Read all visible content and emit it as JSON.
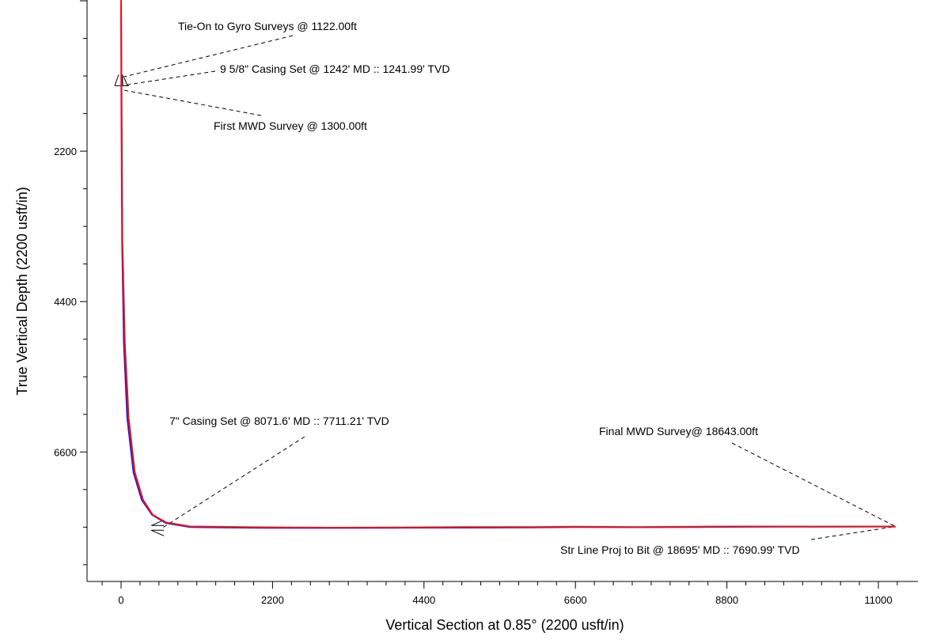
{
  "chart_data": {
    "type": "line",
    "xlabel": "Vertical Section at 0.85° (2200 usft/in)",
    "ylabel": "True Vertical Depth (2200 usft/in)",
    "xlim": [
      -500,
      11400
    ],
    "ylim": [
      0,
      8200
    ],
    "y_inverted": true,
    "x_ticks": [
      0,
      2200,
      4400,
      6600,
      8800,
      11000
    ],
    "x_tick_labels": [
      "0",
      "2200",
      "4400",
      "6600",
      "8800",
      "11000"
    ],
    "y_ticks": [
      2200,
      4400,
      6600
    ],
    "y_tick_labels": [
      "2200",
      "4400",
      "6600"
    ],
    "grid": false,
    "series": [
      {
        "color": "#1f1fd6",
        "x": [
          0,
          5,
          15,
          40,
          90,
          180,
          300,
          450,
          650,
          1000,
          2000,
          3000,
          4000,
          5000,
          6000,
          6600,
          7500,
          8400,
          9200,
          10000,
          10500,
          11000,
          11250
        ],
        "y": [
          -100,
          1500,
          3500,
          5000,
          6100,
          6900,
          7300,
          7520,
          7640,
          7700,
          7710,
          7712,
          7710,
          7708,
          7705,
          7700,
          7702,
          7698,
          7695,
          7693,
          7692,
          7691,
          7691
        ]
      },
      {
        "color": "#e8141c",
        "x": [
          0,
          8,
          20,
          55,
          110,
          200,
          320,
          460,
          650,
          1000,
          2000,
          3000,
          4000,
          5000,
          6000,
          6600,
          7500,
          8400,
          9200,
          10000,
          10500,
          11000,
          11250
        ],
        "y": [
          -100,
          1500,
          3500,
          5000,
          6100,
          6900,
          7300,
          7520,
          7630,
          7690,
          7702,
          7707,
          7705,
          7700,
          7698,
          7694,
          7698,
          7693,
          7690,
          7692,
          7691,
          7691,
          7691
        ]
      }
    ],
    "annotations": [
      {
        "text": "Tie-On to Gyro Surveys @ 1122.00ft",
        "point": [
          0,
          1122
        ]
      },
      {
        "text": "9 5/8\" Casing Set @ 1242' MD :: 1241.99' TVD",
        "point": [
          0,
          1242
        ]
      },
      {
        "text": "First MWD Survey @ 1300.00ft",
        "point": [
          0,
          1300
        ]
      },
      {
        "text": "7\" Casing Set @ 8071.6' MD :: 7711.21' TVD",
        "point": [
          600,
          7711
        ]
      },
      {
        "text": "Final MWD Survey@ 18643.00ft",
        "point": [
          11250,
          7691
        ]
      },
      {
        "text": "Str Line Proj to Bit @ 18695' MD :: 7690.99' TVD",
        "point": [
          11250,
          7691
        ]
      }
    ]
  }
}
